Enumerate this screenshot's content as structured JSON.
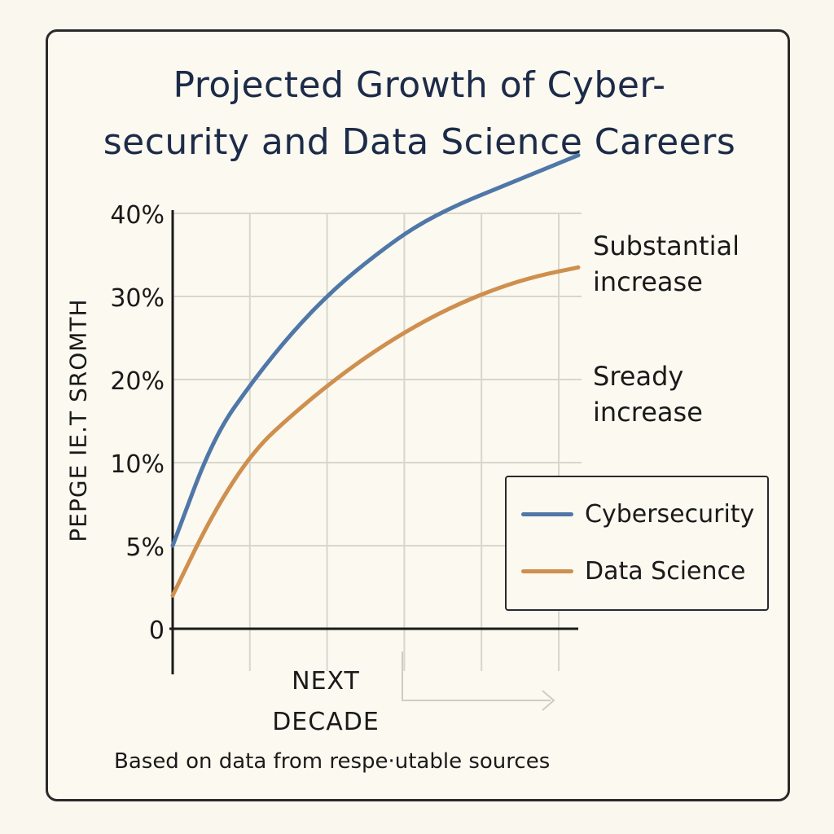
{
  "chart_data": {
    "type": "line",
    "title_lines": [
      "Projected Growth of Cyber-",
      "security and Data Science Careers"
    ],
    "ylabel": "PEPGE IE.T SROMTH",
    "xlabel_lines": [
      "NEXT",
      "DECADE"
    ],
    "y_ticks": [
      {
        "label": "0",
        "value": 0
      },
      {
        "label": "5%",
        "value": 5
      },
      {
        "label": "10%",
        "value": 10
      },
      {
        "label": "20%",
        "value": 20
      },
      {
        "label": "30%",
        "value": 30
      },
      {
        "label": "40%",
        "value": 40
      }
    ],
    "xlim": [
      0,
      10
    ],
    "grid": true,
    "series": [
      {
        "name": "Cybersecurity",
        "color": "#4f77a8",
        "x": [
          0,
          1,
          2,
          3,
          4,
          5,
          6,
          7,
          8,
          9,
          10
        ],
        "y": [
          5,
          13,
          20,
          26,
          31,
          35,
          38.5,
          41,
          43,
          45,
          47
        ]
      },
      {
        "name": "Data Science",
        "color": "#cf8f4e",
        "x": [
          0,
          1,
          2,
          3,
          4,
          5,
          6,
          7,
          8,
          9,
          10
        ],
        "y": [
          2,
          7,
          11.5,
          16,
          20,
          23.5,
          26.5,
          29,
          31,
          32.5,
          33.5
        ]
      }
    ],
    "annotations": [
      {
        "lines": [
          "Substantial",
          "increase"
        ],
        "series": "Cybersecurity"
      },
      {
        "lines": [
          "Sready",
          "increase"
        ],
        "series": "Data Science"
      }
    ],
    "legend_position": "right-middle",
    "footnote": "Based on data from respe·utable sources"
  }
}
